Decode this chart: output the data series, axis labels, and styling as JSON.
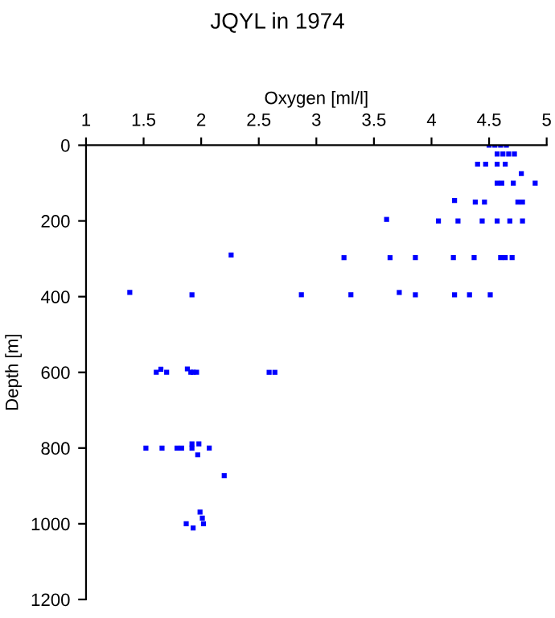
{
  "chart_data": {
    "type": "scatter",
    "title": "JQYL in 1974",
    "xlabel": "Oxygen [ml/l]",
    "ylabel": "Depth [m]",
    "xlim": [
      1,
      5
    ],
    "xticks": [
      1,
      1.5,
      2,
      2.5,
      3,
      3.5,
      4,
      4.5,
      5
    ],
    "ylim": [
      1200,
      0
    ],
    "yticks": [
      0,
      200,
      400,
      600,
      800,
      1000,
      1200
    ],
    "grid": false,
    "marker": "square",
    "series": [
      {
        "color": "#0000ff",
        "x": [
          4.5,
          4.55,
          4.6,
          4.65,
          4.57,
          4.62,
          4.67,
          4.72,
          4.4,
          4.47,
          4.57,
          4.64,
          4.78,
          4.57,
          4.61,
          4.71,
          4.9,
          4.2,
          4.38,
          4.46,
          4.75,
          4.79,
          3.61,
          4.06,
          4.23,
          4.44,
          4.57,
          4.68,
          4.79,
          2.26,
          3.24,
          3.64,
          3.86,
          4.19,
          4.37,
          4.6,
          4.64,
          4.7,
          1.38,
          3.72,
          1.92,
          2.87,
          3.3,
          3.86,
          4.2,
          4.33,
          4.51,
          1.61,
          1.65,
          1.7,
          1.88,
          1.91,
          1.93,
          1.96,
          2.59,
          2.64,
          1.52,
          1.66,
          1.79,
          1.83,
          1.92,
          1.92,
          1.98,
          2.07,
          1.97,
          2.2,
          1.87,
          1.93,
          1.99,
          2.01,
          2.02
        ],
        "values": [
          0,
          0,
          0,
          0,
          23,
          23,
          23,
          23,
          50,
          50,
          50,
          50,
          75,
          100,
          100,
          100,
          100,
          146,
          150,
          150,
          150,
          150,
          196,
          200,
          200,
          200,
          200,
          200,
          200,
          290,
          297,
          297,
          297,
          297,
          297,
          297,
          297,
          297,
          389,
          389,
          395,
          395,
          395,
          395,
          395,
          395,
          395,
          600,
          592,
          600,
          591,
          600,
          600,
          600,
          600,
          600,
          800,
          800,
          800,
          800,
          789,
          800,
          789,
          800,
          818,
          873,
          1000,
          1011,
          969,
          985,
          1000
        ]
      }
    ]
  }
}
